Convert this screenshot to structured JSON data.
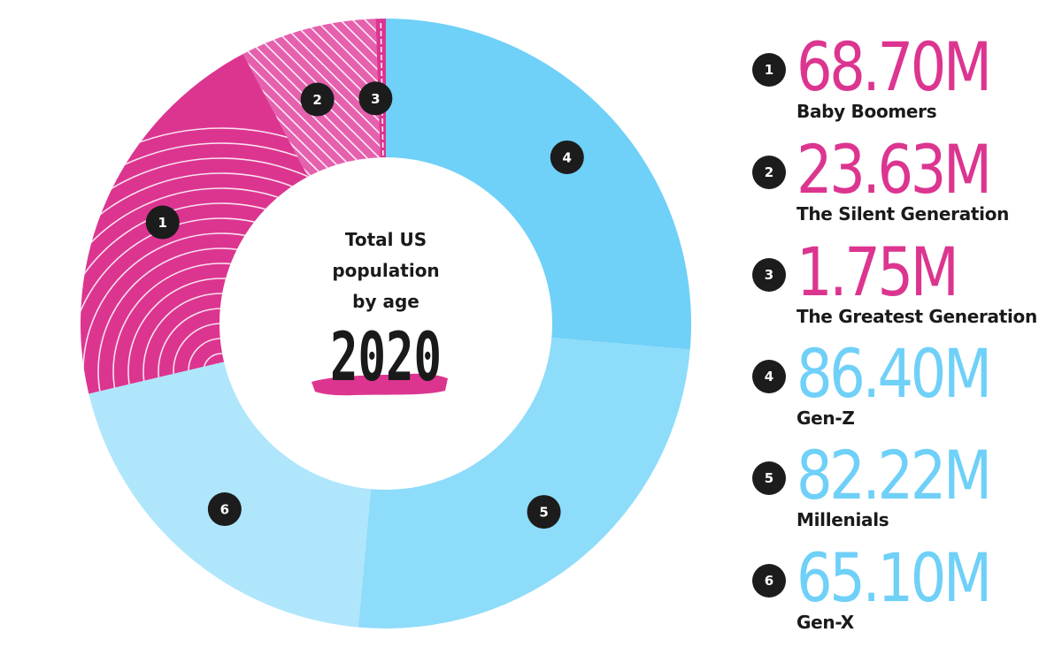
{
  "chart_data": {
    "type": "pie",
    "title": "Total US population by age",
    "year": "2020",
    "categories": [
      "Baby Boomers",
      "The Silent Generation",
      "The Greatest Generation",
      "Gen-Z",
      "Millenials",
      "Gen-X"
    ],
    "values": [
      68.7,
      23.63,
      1.75,
      86.4,
      82.22,
      65.1
    ],
    "value_labels": [
      "68.70M",
      "23.63M",
      "1.75M",
      "86.40M",
      "82.22M",
      "65.10M"
    ],
    "markers": [
      "1",
      "2",
      "3",
      "4",
      "5",
      "6"
    ],
    "colors": [
      "#dc3590",
      "#e561ae",
      "#dc3590",
      "#6fd0f8",
      "#8ddcfa",
      "#afe6fb"
    ],
    "value_colors": [
      "#dc3590",
      "#dc3590",
      "#dc3590",
      "#6fd0f8",
      "#6fd0f8",
      "#6fd0f8"
    ],
    "hatched": [
      true,
      true,
      true,
      false,
      false,
      false
    ],
    "slice_order": [
      "4",
      "5",
      "6",
      "1",
      "2",
      "3"
    ],
    "start_angle": "12 o'clock",
    "direction": "clockwise",
    "legend_position": "right",
    "accent_color": "#dc3590",
    "badge_color": "#1c1c1c"
  }
}
